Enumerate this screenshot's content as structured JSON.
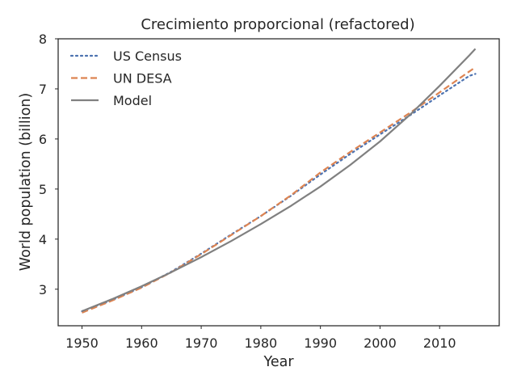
{
  "chart_data": {
    "type": "line",
    "title": "Crecimiento proporcional (refactored)",
    "xlabel": "Year",
    "ylabel": "World population (billion)",
    "xlim": [
      1946,
      2020
    ],
    "ylim": [
      2.27,
      8.0
    ],
    "xticks": [
      1950,
      1960,
      1970,
      1980,
      1990,
      2000,
      2010
    ],
    "yticks": [
      3,
      4,
      5,
      6,
      7,
      8
    ],
    "grid": false,
    "legend_position": "top-left",
    "series": [
      {
        "name": "US Census",
        "color": "#4c72b0",
        "style": "dotted",
        "x": [
          1950,
          1955,
          1960,
          1965,
          1970,
          1975,
          1980,
          1985,
          1990,
          1995,
          2000,
          2005,
          2010,
          2015,
          2016
        ],
        "y": [
          2.56,
          2.78,
          3.04,
          3.35,
          3.71,
          4.09,
          4.46,
          4.86,
          5.29,
          5.7,
          6.09,
          6.47,
          6.87,
          7.26,
          7.3
        ]
      },
      {
        "name": "UN DESA",
        "color": "#dd8452",
        "style": "dashed",
        "x": [
          1950,
          1955,
          1960,
          1965,
          1970,
          1975,
          1980,
          1985,
          1990,
          1995,
          2000,
          2005,
          2010,
          2015,
          2016
        ],
        "y": [
          2.53,
          2.77,
          3.03,
          3.34,
          3.7,
          4.08,
          4.46,
          4.87,
          5.33,
          5.74,
          6.13,
          6.52,
          6.93,
          7.35,
          7.43
        ]
      },
      {
        "name": "Model",
        "color": "#808080",
        "style": "solid",
        "x": [
          1950,
          1955,
          1960,
          1965,
          1970,
          1975,
          1980,
          1985,
          1990,
          1995,
          2000,
          2005,
          2010,
          2015,
          2016
        ],
        "y": [
          2.56,
          2.8,
          3.06,
          3.34,
          3.64,
          3.96,
          4.3,
          4.66,
          5.05,
          5.48,
          5.95,
          6.48,
          7.06,
          7.67,
          7.8
        ]
      }
    ]
  }
}
